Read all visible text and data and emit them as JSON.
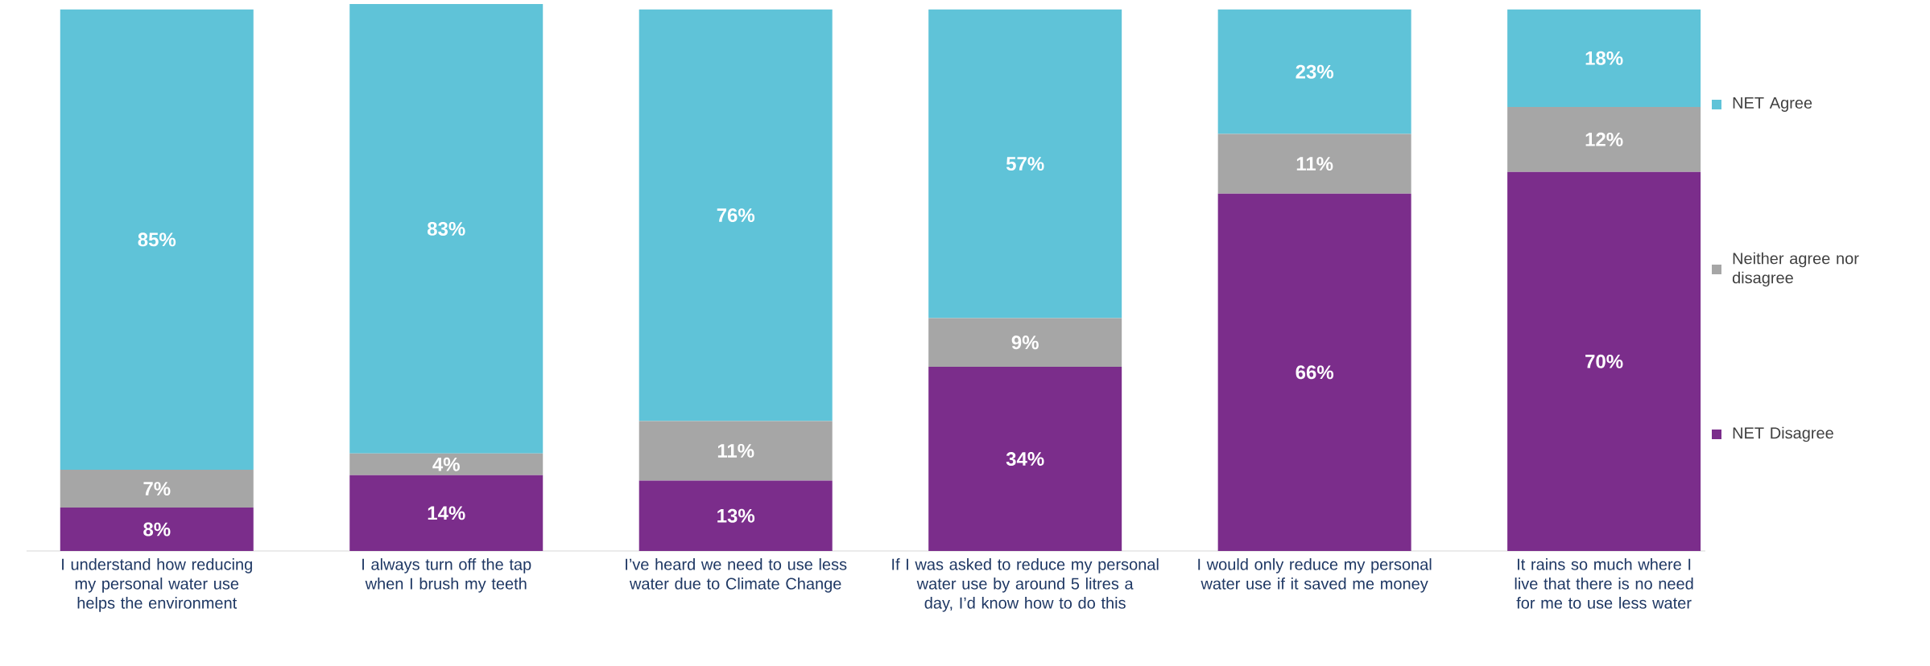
{
  "chart_data": {
    "type": "bar",
    "stacked": true,
    "legend": "right",
    "categories": [
      "I understand how reducing my personal water use helps the environment",
      "I always turn off the tap when I brush my teeth",
      "I’ve heard we need to use less water due to Climate Change",
      "If I was asked to reduce my personal water use by around 5 litres a day, I’d know how to do this",
      "I would only reduce my personal water use if it saved me money",
      "It rains so much where I live that there is no need for me to use less water"
    ],
    "series": [
      {
        "name": "NET Disagree",
        "color": "#7b2d8b",
        "values": [
          8,
          14,
          13,
          34,
          66,
          70
        ],
        "value_labels": [
          "8%",
          "14%",
          "13%",
          "34%",
          "66%",
          "70%"
        ]
      },
      {
        "name": "Neither agree nor disagree",
        "color": "#a6a6a6",
        "values": [
          7,
          4,
          11,
          9,
          11,
          12
        ],
        "value_labels": [
          "7%",
          "4%",
          "11%",
          "9%",
          "11%",
          "12%"
        ]
      },
      {
        "name": "NET Agree",
        "color": "#5fc3d8",
        "values": [
          85,
          83,
          76,
          57,
          23,
          18
        ],
        "value_labels": [
          "85%",
          "83%",
          "76%",
          "57%",
          "23%",
          "18%"
        ]
      }
    ]
  }
}
